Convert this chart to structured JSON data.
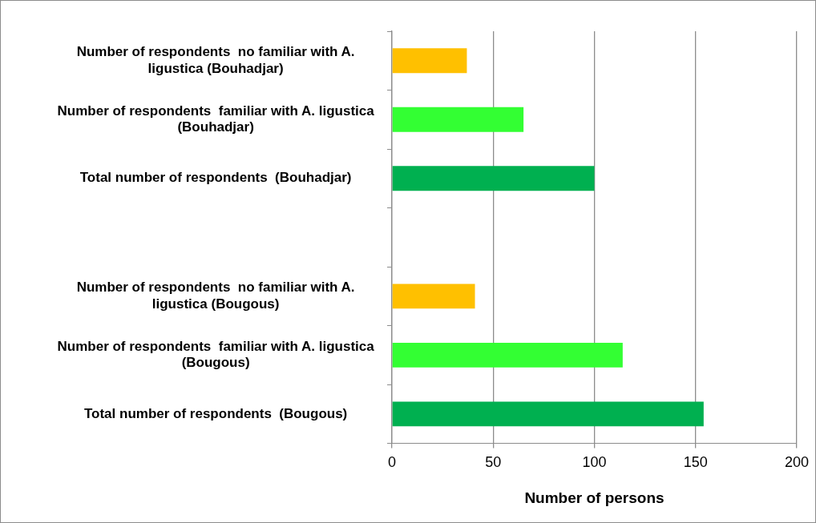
{
  "chart_data": {
    "type": "bar",
    "orientation": "horizontal",
    "xlabel": "Number of persons",
    "categories": [
      "Number of respondents  no familiar with A. ligustica (Bouhadjar)",
      "Number of respondents  familiar with A. ligustica (Bouhadjar)",
      "Total number of respondents  (Bouhadjar)",
      null,
      "Number of respondents  no familiar with A. ligustica (Bougous)",
      "Number of respondents  familiar with A. ligustica (Bougous)",
      "Total number of respondents  (Bougous)"
    ],
    "values": [
      37,
      65,
      100,
      null,
      41,
      114,
      154
    ],
    "colors": [
      "#ffc000",
      "#33ff33",
      "#00b050",
      "#000000",
      "#ffc000",
      "#33ff33",
      "#00b050"
    ],
    "xlim": [
      0,
      200
    ],
    "xticks": [
      0,
      50,
      100,
      150,
      200
    ],
    "grid": "x",
    "legend": false
  }
}
